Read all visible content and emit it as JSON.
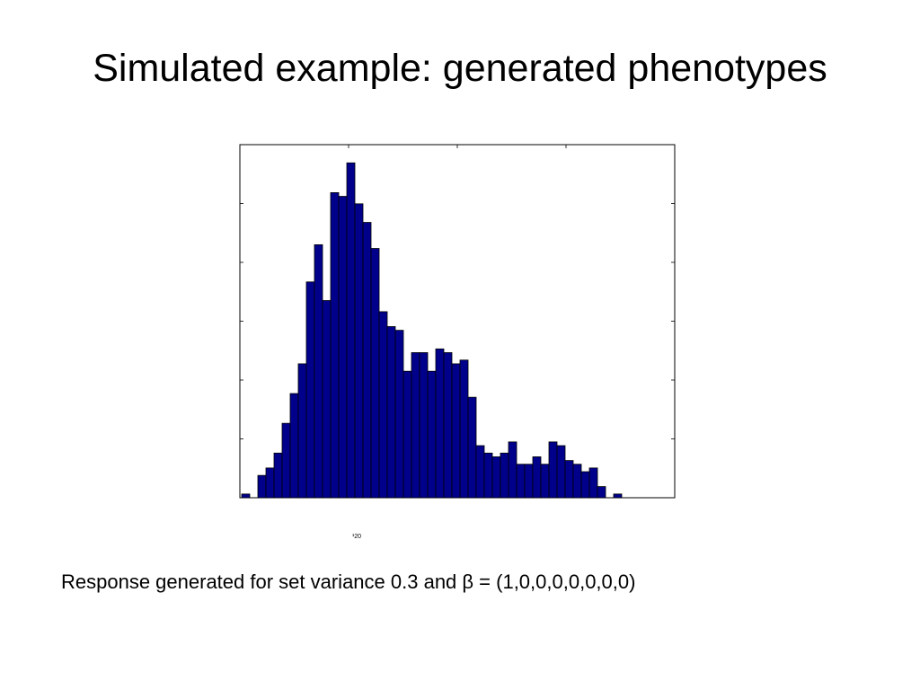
{
  "slide": {
    "title": "Simulated example: generated phenotypes",
    "caption": "Response generated for set variance 0.3 and β = (1,0,0,0,0,0,0,0)"
  },
  "chart_data": {
    "type": "bar",
    "title": "",
    "xlabel": "",
    "ylabel": "",
    "tick_label_text": "¹20",
    "bins": 48,
    "values": [
      1,
      0,
      6,
      8,
      12,
      20,
      28,
      36,
      58,
      68,
      53,
      82,
      81,
      90,
      79,
      74,
      67,
      50,
      46,
      45,
      34,
      39,
      39,
      34,
      40,
      39,
      36,
      37,
      27,
      14,
      12,
      11,
      12,
      15,
      9,
      9,
      11,
      9,
      15,
      14,
      10,
      9,
      7,
      8,
      3,
      0,
      1,
      0
    ],
    "ylim": [
      0,
      92
    ],
    "grid": false,
    "legend": "none",
    "colors": {
      "bar_fill": "#00008b",
      "bar_stroke": "#000000",
      "axes": "#000000",
      "tick_label": "#000000"
    }
  }
}
